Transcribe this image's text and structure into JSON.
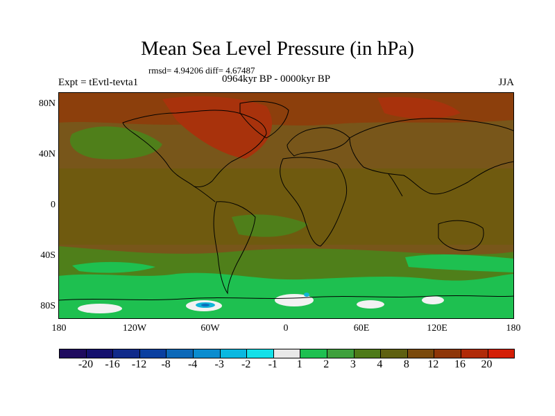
{
  "title": "Mean Sea Level Pressure (in hPa)",
  "stats": "rmsd= 4.94206 diff= 4.67487",
  "left_label": "Expt = tEvtl-tevta1",
  "center_label": "0964kyr BP - 0000kyr BP",
  "right_label": "JJA",
  "y_ticks": [
    "80N",
    "40N",
    "0",
    "40S",
    "80S"
  ],
  "x_ticks": [
    "180",
    "120W",
    "60W",
    "0",
    "60E",
    "120E",
    "180"
  ],
  "colorbar": {
    "labels": [
      "-20",
      "-16",
      "-12",
      "-8",
      "-4",
      "-3",
      "-2",
      "-1",
      "1",
      "2",
      "3",
      "4",
      "8",
      "12",
      "16",
      "20"
    ],
    "colors": [
      "#1e0a5e",
      "#14106e",
      "#102a8a",
      "#0a3fa0",
      "#0b68b8",
      "#0a8ccf",
      "#0ab8e0",
      "#14e0e8",
      "#e8e8e8",
      "#1ec050",
      "#3ea03c",
      "#4e7a18",
      "#5e6010",
      "#7a4a0c",
      "#8e3608",
      "#b02a08",
      "#d41e06"
    ]
  },
  "palette": {
    "background": "#78561a",
    "land_brown": "#6f5a0f",
    "high_warm": "#8c3f0c",
    "peak_red": "#a8320c",
    "mid_green": "#4f7f1a",
    "light_green": "#1ec050",
    "white": "#f2f2f2",
    "cyan": "#10b4d8",
    "blue": "#0a6cbc",
    "coast": "#000000"
  }
}
